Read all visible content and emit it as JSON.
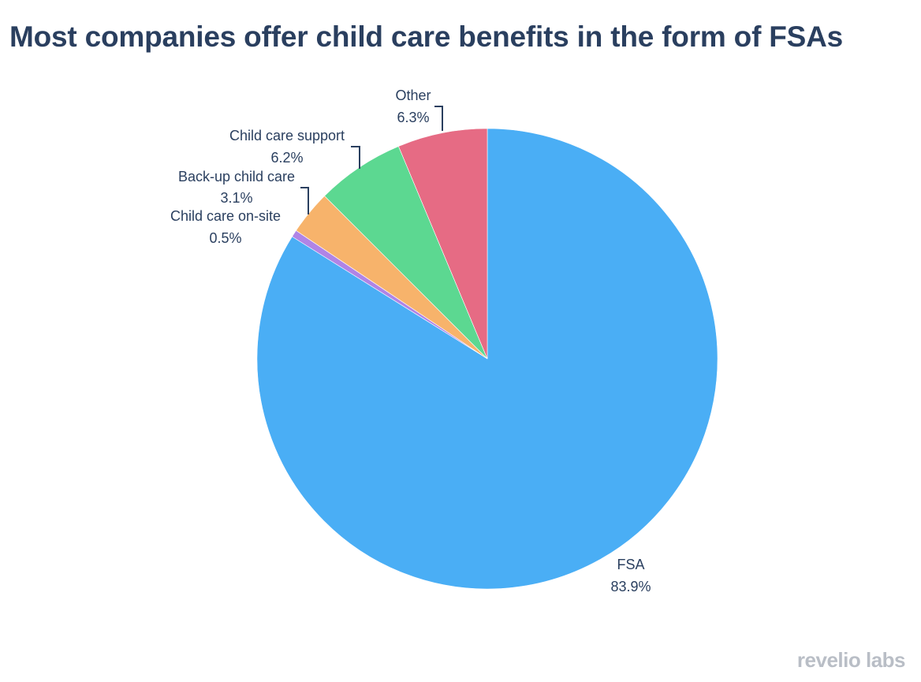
{
  "chart_data": {
    "type": "pie",
    "title": "Most companies offer child care benefits in the form of FSAs",
    "slices": [
      {
        "label": "FSA",
        "value": 83.9,
        "value_label": "83.9%",
        "color": "#4aaef5"
      },
      {
        "label": "Child care on-site",
        "value": 0.5,
        "value_label": "0.5%",
        "color": "#b084e6"
      },
      {
        "label": "Back-up child care",
        "value": 3.1,
        "value_label": "3.1%",
        "color": "#f7b36b"
      },
      {
        "label": "Child care support",
        "value": 6.2,
        "value_label": "6.2%",
        "color": "#5cd891"
      },
      {
        "label": "Other",
        "value": 6.3,
        "value_label": "6.3%",
        "color": "#e66b84"
      }
    ]
  },
  "branding": {
    "logo_text": "revelio labs"
  }
}
